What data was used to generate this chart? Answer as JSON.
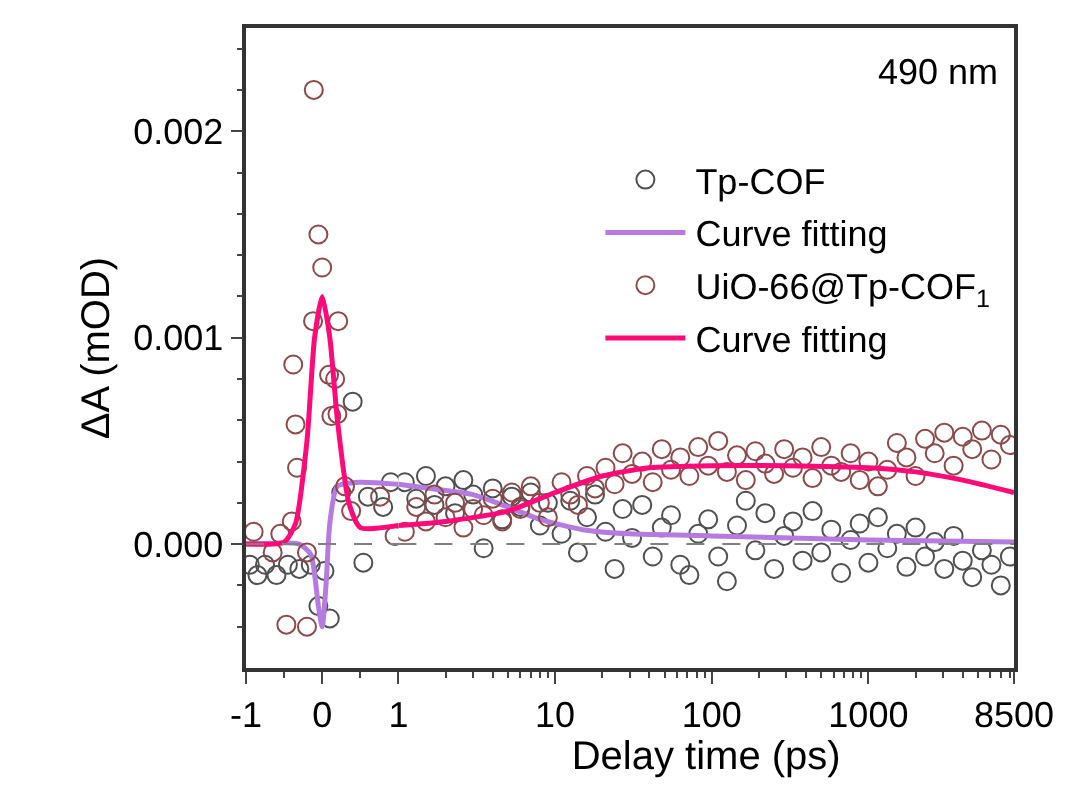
{
  "chart_data": [
    {
      "type": "scatter",
      "ylabel": "ΔA (mOD)",
      "xlim": [
        -1,
        1
      ],
      "xticks": [
        -1,
        {
          "value": -0.5,
          "label": null
        },
        0,
        {
          "value": 0.5,
          "label": null
        }
      ],
      "ylim": [
        -0.0006,
        0.0025
      ],
      "yticks": [
        {
          "value": -0.0004,
          "label": null
        },
        {
          "value": -0.0002,
          "label": null
        },
        {
          "value": 0,
          "label": "0.000"
        },
        {
          "value": 0.0002,
          "label": null
        },
        {
          "value": 0.0004,
          "label": null
        },
        {
          "value": 0.0006,
          "label": null
        },
        {
          "value": 0.0008,
          "label": null
        },
        {
          "value": 0.001,
          "label": "0.001"
        },
        {
          "value": 0.0012,
          "label": null
        },
        {
          "value": 0.0014,
          "label": null
        },
        {
          "value": 0.0016,
          "label": null
        },
        {
          "value": 0.0018,
          "label": null
        },
        {
          "value": 0.002,
          "label": "0.002"
        },
        {
          "value": 0.0022,
          "label": null
        },
        {
          "value": 0.0024,
          "label": null
        }
      ],
      "grid": false,
      "legend": false,
      "ref_lines": [
        {
          "axis": "y",
          "value": 0,
          "label": null,
          "color": "#808080",
          "line_style": "dashed"
        }
      ],
      "series": [
        {
          "marker": "circle",
          "color": "#505050",
          "x": [
            -0.95,
            -0.85,
            -0.75,
            -0.6,
            -0.45,
            -0.3,
            -0.15,
            -0.05,
            0.03,
            0.1,
            0.25,
            0.4,
            0.54,
            0.6,
            0.8,
            0.9
          ],
          "values": [
            -0.0001,
            -0.00015,
            -0.0001,
            -0.00015,
            -0.0001,
            -0.00012,
            -0.0001,
            -0.0003,
            -0.00013,
            -0.00036,
            0.00025,
            0.00069,
            -9e-05,
            0.00023,
            0.00018,
            0.0003
          ]
        },
        {
          "type": "line",
          "line_style": "solid",
          "color": "#b57be0",
          "x": [
            -1,
            -0.3,
            -0.15,
            -0.05,
            0,
            0.05,
            0.1,
            0.2,
            0.5,
            1
          ],
          "values": [
            0,
            0,
            -5e-05,
            -0.0003,
            -0.0004,
            -0.0002,
            0.0001,
            0.00028,
            0.0003,
            0.00029
          ]
        },
        {
          "marker": "circle",
          "color": "#8c4a4a",
          "x": [
            -0.9,
            -0.65,
            -0.55,
            -0.47,
            -0.4,
            -0.38,
            -0.35,
            -0.33,
            -0.2,
            -0.2,
            -0.12,
            -0.11,
            -0.05,
            0,
            0.09,
            0.12,
            0.17,
            0.2,
            0.21,
            0.3,
            0.38,
            0.76,
            0.95
          ],
          "values": [
            6e-05,
            -4e-05,
            5e-05,
            -0.00039,
            0.00011,
            0.00087,
            0.00058,
            0.00037,
            -0.0004,
            -4e-05,
            0.00108,
            0.0022,
            0.0015,
            0.00134,
            0.00082,
            0.00062,
            0.0008,
            0.00063,
            0.00108,
            0.00028,
            0.00016,
            0.00023,
            4e-05
          ]
        },
        {
          "type": "line",
          "line_style": "solid",
          "color": "#ff0a78",
          "x": [
            -1,
            -0.5,
            -0.35,
            -0.2,
            -0.1,
            0,
            0.1,
            0.2,
            0.35,
            0.5,
            1
          ],
          "values": [
            0,
            1e-05,
            0.0001,
            0.0005,
            0.001,
            0.0012,
            0.001,
            0.0006,
            0.0002,
            8e-05,
            9e-05
          ]
        }
      ]
    },
    {
      "type": "scatter",
      "xlabel": "Delay time (ps)",
      "log": "x",
      "tick_labels": "x",
      "annotations": [
        "490 nm"
      ],
      "legend": "top right",
      "grid": false,
      "xlim": [
        1,
        8500
      ],
      "xticks": [
        1,
        {
          "value": 2,
          "label": null
        },
        {
          "value": 3,
          "label": null
        },
        {
          "value": 4,
          "label": null
        },
        {
          "value": 5,
          "label": null
        },
        {
          "value": 6,
          "label": null
        },
        {
          "value": 7,
          "label": null
        },
        {
          "value": 8,
          "label": null
        },
        {
          "value": 9,
          "label": null
        },
        10,
        {
          "value": 20,
          "label": null
        },
        {
          "value": 30,
          "label": null
        },
        {
          "value": 40,
          "label": null
        },
        {
          "value": 50,
          "label": null
        },
        {
          "value": 60,
          "label": null
        },
        {
          "value": 70,
          "label": null
        },
        {
          "value": 80,
          "label": null
        },
        {
          "value": 90,
          "label": null
        },
        100,
        {
          "value": 200,
          "label": null
        },
        {
          "value": 300,
          "label": null
        },
        {
          "value": 400,
          "label": null
        },
        {
          "value": 500,
          "label": null
        },
        {
          "value": 600,
          "label": null
        },
        {
          "value": 700,
          "label": null
        },
        {
          "value": 800,
          "label": null
        },
        {
          "value": 900,
          "label": null
        },
        1000,
        {
          "value": 2000,
          "label": null
        },
        {
          "value": 3000,
          "label": null
        },
        {
          "value": 4000,
          "label": null
        },
        {
          "value": 5000,
          "label": null
        },
        {
          "value": 6000,
          "label": null
        },
        {
          "value": 7000,
          "label": null
        },
        {
          "value": 8000,
          "label": null
        },
        8500
      ],
      "ylim": [
        -0.0006,
        0.0025
      ],
      "ref_lines": [
        {
          "axis": "y",
          "value": 0,
          "label": null,
          "color": "#808080",
          "line_style": "dashed"
        }
      ],
      "series": [
        {
          "name": "Tp-COF",
          "marker": "circle",
          "color": "#505050",
          "x": [
            1.1,
            1.3,
            1.5,
            1.7,
            2.0,
            2.3,
            2.6,
            3.0,
            3.5,
            4,
            4.6,
            5.3,
            6,
            7,
            8,
            9,
            11,
            12.5,
            14,
            16,
            18,
            21,
            24,
            27,
            31,
            36,
            42,
            48,
            55,
            63,
            72,
            82,
            95,
            110,
            125,
            145,
            165,
            190,
            220,
            250,
            290,
            330,
            380,
            440,
            500,
            580,
            670,
            770,
            880,
            1000,
            1150,
            1320,
            1520,
            1750,
            2000,
            2300,
            2650,
            3050,
            3500,
            4000,
            4600,
            5300,
            6100,
            7000,
            8000
          ],
          "values": [
            0.0003,
            0.00022,
            0.00033,
            0.00019,
            0.00028,
            0.00015,
            0.00031,
            0.00024,
            -2e-05,
            0.00027,
            0.00012,
            0.00023,
            0.00018,
            0.00025,
            9e-05,
            0.0002,
            5e-05,
            0.00021,
            -4e-05,
            0.00013,
            0.00024,
            6e-05,
            -0.00012,
            0.00017,
            3e-05,
            0.00019,
            -6e-05,
            8e-05,
            0.00014,
            -0.0001,
            -0.00015,
            5e-05,
            0.00012,
            -6e-05,
            -0.00018,
            9e-05,
            0.00021,
            -3e-05,
            0.00015,
            -0.00012,
            4e-05,
            0.00011,
            -8e-05,
            0.00016,
            -4e-05,
            7e-05,
            -0.00014,
            2e-05,
            0.0001,
            -9e-05,
            0.00013,
            -2e-05,
            5e-05,
            -0.00011,
            8e-05,
            -6e-05,
            1e-05,
            -0.00012,
            4e-05,
            -8e-05,
            -0.00016,
            -3e-05,
            -0.0001,
            -0.0002,
            -6e-05
          ]
        },
        {
          "name": "Curve fitting",
          "type": "line",
          "line_style": "solid",
          "color": "#b57be0",
          "x": [
            1,
            2,
            3,
            5,
            8,
            15,
            30,
            100,
            1000,
            8500
          ],
          "values": [
            0.00029,
            0.00026,
            0.00024,
            0.00018,
            0.00012,
            7e-05,
            5e-05,
            4e-05,
            2e-05,
            1e-05
          ]
        },
        {
          "name": "UiO-66@Tp-COF$_{1}$",
          "marker": "circle",
          "color": "#8c4a4a",
          "x": [
            1.1,
            1.3,
            1.5,
            1.7,
            2.0,
            2.3,
            2.6,
            3.0,
            3.5,
            4,
            4.6,
            5.3,
            6,
            7,
            8,
            9,
            11,
            12.5,
            14,
            16,
            18,
            21,
            24,
            27,
            31,
            36,
            42,
            48,
            55,
            63,
            72,
            82,
            95,
            110,
            125,
            145,
            165,
            190,
            220,
            250,
            290,
            330,
            380,
            440,
            500,
            580,
            670,
            770,
            880,
            1000,
            1150,
            1320,
            1520,
            1750,
            2000,
            2300,
            2650,
            3050,
            3500,
            4000,
            4600,
            5300,
            6100,
            7000,
            8000
          ],
          "values": [
            6e-05,
            0.00018,
            0.00011,
            0.00024,
            0.00013,
            0.0002,
            8e-05,
            0.00017,
            0.00014,
            0.00022,
            0.00011,
            0.00025,
            0.00017,
            0.00028,
            0.0002,
            0.00013,
            0.0003,
            0.00024,
            0.00019,
            0.00033,
            0.00027,
            0.00037,
            0.00029,
            0.00044,
            0.00034,
            0.0004,
            0.0003,
            0.00046,
            0.00036,
            0.00042,
            0.00033,
            0.00047,
            0.00038,
            0.0005,
            0.00035,
            0.00043,
            0.00031,
            0.00045,
            0.00039,
            0.00034,
            0.00046,
            0.00037,
            0.00042,
            0.00032,
            0.00047,
            0.00038,
            0.00035,
            0.00044,
            0.00031,
            0.0004,
            0.00028,
            0.00036,
            0.00049,
            0.00042,
            0.00033,
            0.00051,
            0.00044,
            0.00054,
            0.00038,
            0.00052,
            0.00046,
            0.00055,
            0.00041,
            0.00053,
            0.00048
          ]
        },
        {
          "name": "Curve fitting",
          "type": "line",
          "line_style": "solid",
          "color": "#ff0a78",
          "x": [
            1,
            2,
            5,
            10,
            20,
            40,
            100,
            300,
            1000,
            2000,
            4000,
            8500
          ],
          "values": [
            9e-05,
            0.00011,
            0.00016,
            0.00025,
            0.00033,
            0.00037,
            0.00038,
            0.00038,
            0.00037,
            0.00035,
            0.00031,
            0.00025
          ]
        }
      ]
    }
  ]
}
